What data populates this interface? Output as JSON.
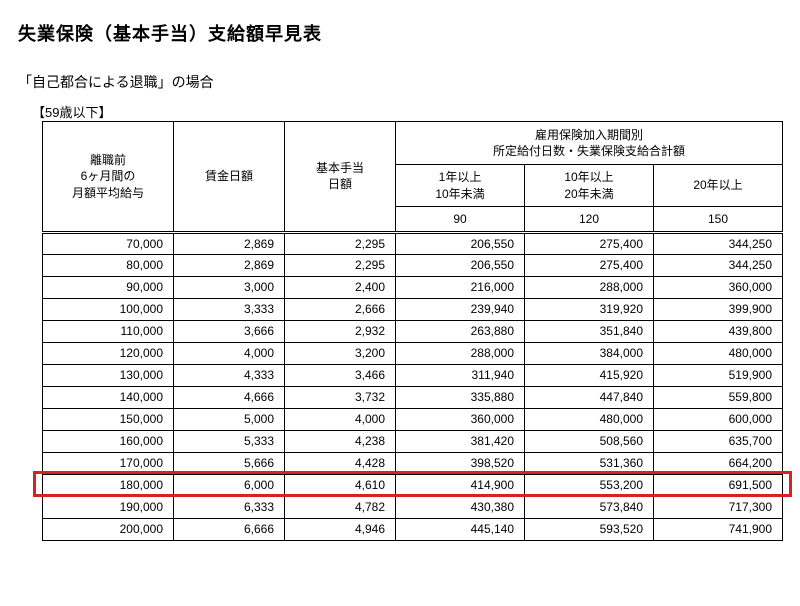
{
  "title": "失業保険（基本手当）支給額早見表",
  "subtitle": "「自己都合による退職」の場合",
  "age_label": "【59歳以下】",
  "headers": {
    "salary": "離職前\n6ヶ月間の\n月額平均給与",
    "wage_daily": "賃金日額",
    "base_daily": "基本手当\n日額",
    "group": "雇用保険加入期間別\n所定給付日数・失業保険支給合計額",
    "period1": "1年以上\n10年未満",
    "period2": "10年以上\n20年未満",
    "period3": "20年以上",
    "days1": "90",
    "days2": "120",
    "days3": "150"
  },
  "rows": [
    {
      "salary": "70,000",
      "wage": "2,869",
      "base": "2,295",
      "p1": "206,550",
      "p2": "275,400",
      "p3": "344,250"
    },
    {
      "salary": "80,000",
      "wage": "2,869",
      "base": "2,295",
      "p1": "206,550",
      "p2": "275,400",
      "p3": "344,250"
    },
    {
      "salary": "90,000",
      "wage": "3,000",
      "base": "2,400",
      "p1": "216,000",
      "p2": "288,000",
      "p3": "360,000"
    },
    {
      "salary": "100,000",
      "wage": "3,333",
      "base": "2,666",
      "p1": "239,940",
      "p2": "319,920",
      "p3": "399,900"
    },
    {
      "salary": "110,000",
      "wage": "3,666",
      "base": "2,932",
      "p1": "263,880",
      "p2": "351,840",
      "p3": "439,800"
    },
    {
      "salary": "120,000",
      "wage": "4,000",
      "base": "3,200",
      "p1": "288,000",
      "p2": "384,000",
      "p3": "480,000"
    },
    {
      "salary": "130,000",
      "wage": "4,333",
      "base": "3,466",
      "p1": "311,940",
      "p2": "415,920",
      "p3": "519,900"
    },
    {
      "salary": "140,000",
      "wage": "4,666",
      "base": "3,732",
      "p1": "335,880",
      "p2": "447,840",
      "p3": "559,800"
    },
    {
      "salary": "150,000",
      "wage": "5,000",
      "base": "4,000",
      "p1": "360,000",
      "p2": "480,000",
      "p3": "600,000"
    },
    {
      "salary": "160,000",
      "wage": "5,333",
      "base": "4,238",
      "p1": "381,420",
      "p2": "508,560",
      "p3": "635,700"
    },
    {
      "salary": "170,000",
      "wage": "5,666",
      "base": "4,428",
      "p1": "398,520",
      "p2": "531,360",
      "p3": "664,200"
    },
    {
      "salary": "180,000",
      "wage": "6,000",
      "base": "4,610",
      "p1": "414,900",
      "p2": "553,200",
      "p3": "691,500"
    },
    {
      "salary": "190,000",
      "wage": "6,333",
      "base": "4,782",
      "p1": "430,380",
      "p2": "573,840",
      "p3": "717,300"
    },
    {
      "salary": "200,000",
      "wage": "6,666",
      "base": "4,946",
      "p1": "445,140",
      "p2": "593,520",
      "p3": "741,900"
    }
  ],
  "highlight": {
    "row_index": 11,
    "color": "#d92121"
  }
}
